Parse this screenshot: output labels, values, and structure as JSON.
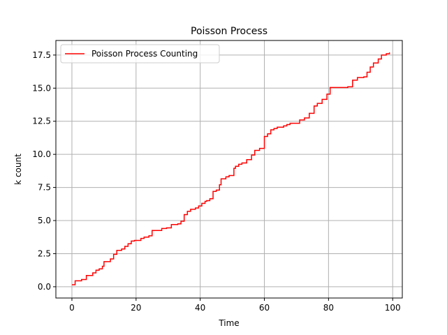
{
  "chart_data": {
    "type": "line",
    "title": "Poisson Process",
    "xlabel": "Time",
    "ylabel": "k count",
    "xlim": [
      -5,
      103
    ],
    "ylim": [
      -0.85,
      18.6
    ],
    "xticks": [
      0,
      20,
      40,
      60,
      80,
      100
    ],
    "xtick_labels": [
      "0",
      "20",
      "40",
      "60",
      "80",
      "100"
    ],
    "yticks": [
      0,
      2.5,
      5,
      7.5,
      10,
      12.5,
      15,
      17.5
    ],
    "ytick_labels": [
      "0.0",
      "2.5",
      "5.0",
      "7.5",
      "10.0",
      "12.5",
      "15.0",
      "17.5"
    ],
    "grid": true,
    "legend_position": "upper-left",
    "series": [
      {
        "name": "Poisson Process Counting",
        "color": "#ff0000",
        "step": "post",
        "x": [
          0,
          1,
          3,
          4.5,
          6.5,
          7.5,
          8.5,
          9.5,
          10,
          12,
          13,
          14,
          15.5,
          16.5,
          17.5,
          18.5,
          19.5,
          21.5,
          22.5,
          24,
          25,
          28,
          29.5,
          31,
          33,
          34,
          35,
          36,
          37,
          38.5,
          39.5,
          40.5,
          41.5,
          42,
          43,
          44,
          45,
          46,
          46.5,
          48,
          49,
          50.5,
          51,
          52,
          53,
          54.5,
          56,
          57,
          58.5,
          60,
          61,
          62,
          63,
          64,
          66,
          67,
          68,
          69,
          70,
          71,
          72.5,
          73,
          74,
          75.5,
          76.5,
          78,
          79.5,
          80.5,
          84,
          86,
          87.5,
          89,
          91,
          92,
          93,
          94,
          95.5,
          96.5,
          98,
          99
        ],
        "y": [
          0.15,
          0.45,
          0.55,
          0.85,
          1.05,
          1.25,
          1.35,
          1.55,
          1.9,
          2.1,
          2.45,
          2.75,
          2.85,
          3.05,
          3.25,
          3.45,
          3.5,
          3.65,
          3.75,
          3.85,
          4.25,
          4.4,
          4.45,
          4.7,
          4.75,
          4.95,
          5.45,
          5.7,
          5.85,
          5.95,
          6.1,
          6.3,
          6.45,
          6.5,
          6.65,
          7.2,
          7.3,
          7.7,
          8.15,
          8.3,
          8.4,
          8.95,
          9.1,
          9.25,
          9.35,
          9.6,
          9.95,
          10.3,
          10.45,
          11.35,
          11.55,
          11.85,
          11.95,
          12.05,
          12.15,
          12.25,
          12.35,
          12.35,
          12.35,
          12.6,
          12.75,
          12.75,
          13.1,
          13.65,
          13.85,
          14.15,
          14.55,
          15.05,
          15.05,
          15.1,
          15.6,
          15.8,
          15.85,
          16.2,
          16.6,
          16.9,
          17.2,
          17.5,
          17.6,
          17.7
        ]
      }
    ]
  }
}
